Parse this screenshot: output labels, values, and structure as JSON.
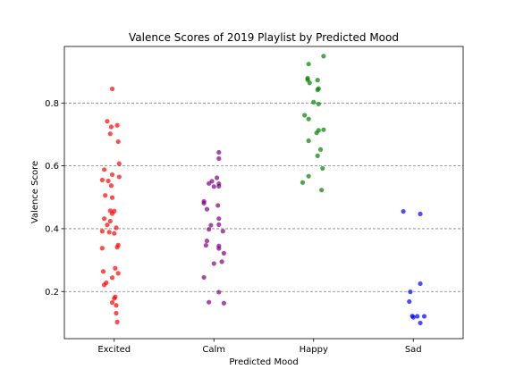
{
  "chart_data": {
    "type": "scatter",
    "title": "Valence Scores of 2019 Playlist by Predicted Mood",
    "xlabel": "Predicted Mood",
    "ylabel": "Valence Score",
    "categories": [
      "Excited",
      "Calm",
      "Happy",
      "Sad"
    ],
    "ylim": [
      0.05,
      0.98
    ],
    "yticks": [
      0.2,
      0.4,
      0.6,
      0.8
    ],
    "ytick_labels": [
      "0.2",
      "0.4",
      "0.6",
      "0.8"
    ],
    "grid": "horizontal dashed",
    "legend": "none",
    "series": [
      {
        "category": "Excited",
        "color": "#ff0000",
        "points": [
          [
            -0.02,
            0.845
          ],
          [
            -0.07,
            0.742
          ],
          [
            -0.03,
            0.724
          ],
          [
            0.03,
            0.729
          ],
          [
            -0.04,
            0.702
          ],
          [
            0.04,
            0.677
          ],
          [
            0.05,
            0.607
          ],
          [
            -0.1,
            0.588
          ],
          [
            -0.02,
            0.572
          ],
          [
            0.05,
            0.565
          ],
          [
            -0.12,
            0.555
          ],
          [
            -0.06,
            0.552
          ],
          [
            -0.03,
            0.537
          ],
          [
            -0.09,
            0.506
          ],
          [
            -0.02,
            0.499
          ],
          [
            -0.04,
            0.457
          ],
          [
            0.0,
            0.456
          ],
          [
            -0.02,
            0.448
          ],
          [
            -0.1,
            0.432
          ],
          [
            -0.04,
            0.424
          ],
          [
            -0.07,
            0.412
          ],
          [
            0.02,
            0.403
          ],
          [
            -0.12,
            0.392
          ],
          [
            -0.05,
            0.389
          ],
          [
            0.0,
            0.385
          ],
          [
            0.04,
            0.348
          ],
          [
            0.03,
            0.341
          ],
          [
            -0.12,
            0.338
          ],
          [
            0.01,
            0.274
          ],
          [
            -0.11,
            0.264
          ],
          [
            0.04,
            0.258
          ],
          [
            -0.02,
            0.244
          ],
          [
            -0.08,
            0.228
          ],
          [
            -0.1,
            0.221
          ],
          [
            0.01,
            0.183
          ],
          [
            0.0,
            0.178
          ],
          [
            -0.02,
            0.165
          ],
          [
            0.02,
            0.156
          ],
          [
            0.02,
            0.131
          ],
          [
            0.03,
            0.103
          ]
        ]
      },
      {
        "category": "Calm",
        "color": "#800080",
        "points": [
          [
            0.05,
            0.643
          ],
          [
            0.05,
            0.623
          ],
          [
            0.03,
            0.562
          ],
          [
            -0.02,
            0.551
          ],
          [
            -0.05,
            0.544
          ],
          [
            0.05,
            0.543
          ],
          [
            0.05,
            0.535
          ],
          [
            0.0,
            0.534
          ],
          [
            -0.1,
            0.487
          ],
          [
            -0.1,
            0.481
          ],
          [
            0.04,
            0.474
          ],
          [
            -0.07,
            0.462
          ],
          [
            0.05,
            0.432
          ],
          [
            0.05,
            0.413
          ],
          [
            -0.03,
            0.411
          ],
          [
            -0.05,
            0.398
          ],
          [
            0.09,
            0.392
          ],
          [
            -0.07,
            0.361
          ],
          [
            -0.08,
            0.347
          ],
          [
            0.05,
            0.345
          ],
          [
            0.05,
            0.337
          ],
          [
            0.1,
            0.322
          ],
          [
            0.08,
            0.295
          ],
          [
            0.0,
            0.289
          ],
          [
            -0.1,
            0.245
          ],
          [
            0.05,
            0.198
          ],
          [
            -0.05,
            0.166
          ],
          [
            0.1,
            0.163
          ]
        ]
      },
      {
        "category": "Happy",
        "color": "#008000",
        "points": [
          [
            0.1,
            0.949
          ],
          [
            -0.05,
            0.924
          ],
          [
            -0.06,
            0.879
          ],
          [
            -0.06,
            0.874
          ],
          [
            0.04,
            0.873
          ],
          [
            -0.04,
            0.864
          ],
          [
            0.05,
            0.846
          ],
          [
            0.04,
            0.842
          ],
          [
            0.0,
            0.803
          ],
          [
            0.05,
            0.797
          ],
          [
            -0.09,
            0.761
          ],
          [
            -0.05,
            0.749
          ],
          [
            0.1,
            0.715
          ],
          [
            0.05,
            0.713
          ],
          [
            0.03,
            0.705
          ],
          [
            -0.05,
            0.68
          ],
          [
            0.07,
            0.652
          ],
          [
            0.04,
            0.632
          ],
          [
            0.09,
            0.592
          ],
          [
            -0.05,
            0.567
          ],
          [
            -0.11,
            0.547
          ],
          [
            0.08,
            0.523
          ]
        ]
      },
      {
        "category": "Sad",
        "color": "#0000ff",
        "points": [
          [
            -0.1,
            0.455
          ],
          [
            0.07,
            0.447
          ],
          [
            0.07,
            0.225
          ],
          [
            -0.03,
            0.199
          ],
          [
            -0.04,
            0.168
          ],
          [
            -0.01,
            0.122
          ],
          [
            0.04,
            0.121
          ],
          [
            0.11,
            0.121
          ],
          [
            0.0,
            0.118
          ],
          [
            0.07,
            0.1
          ]
        ]
      }
    ]
  }
}
